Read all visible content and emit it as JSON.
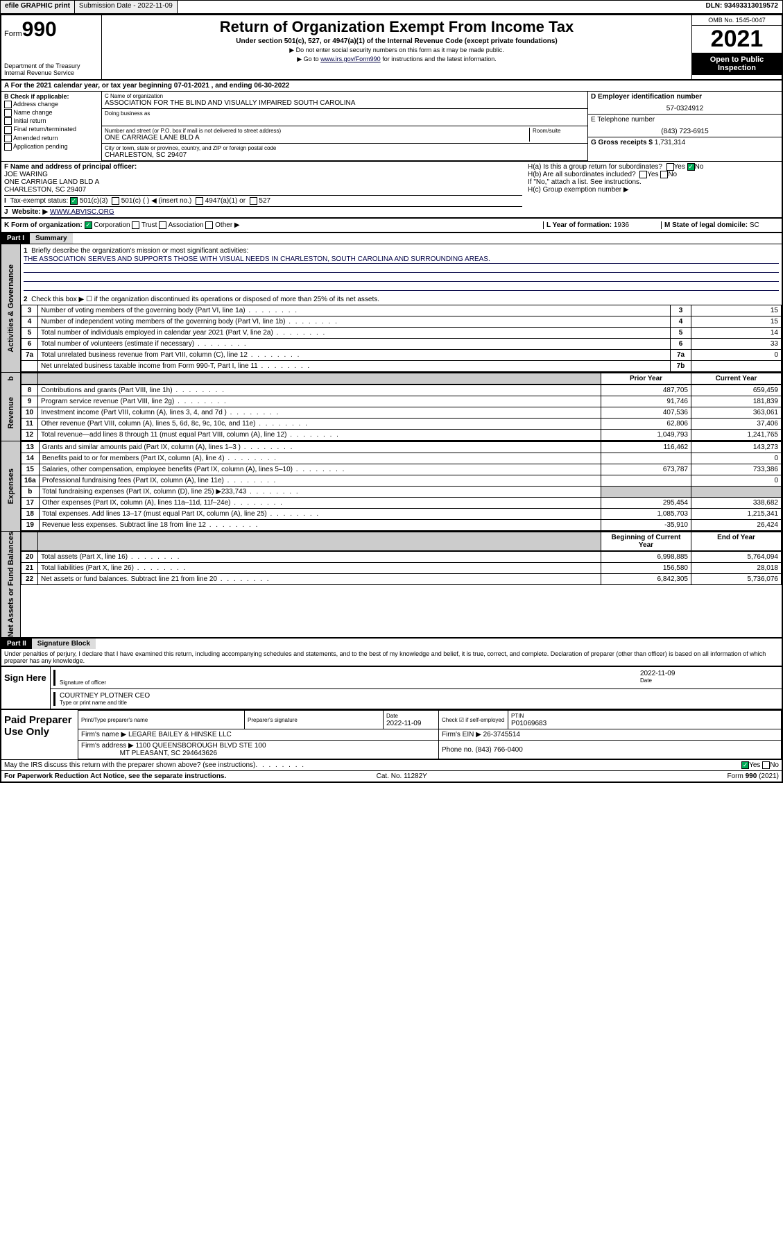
{
  "topbar": {
    "efile": "efile GRAPHIC print",
    "submission": "Submission Date - 2022-11-09",
    "dln": "DLN: 93493313019572"
  },
  "header": {
    "form_label": "Form",
    "form_num": "990",
    "dept": "Department of the Treasury",
    "irs": "Internal Revenue Service",
    "title": "Return of Organization Exempt From Income Tax",
    "sub1": "Under section 501(c), 527, or 4947(a)(1) of the Internal Revenue Code (except private foundations)",
    "sub2": "▶ Do not enter social security numbers on this form as it may be made public.",
    "sub3_pre": "▶ Go to ",
    "sub3_link": "www.irs.gov/Form990",
    "sub3_post": " for instructions and the latest information.",
    "omb": "OMB No. 1545-0047",
    "year": "2021",
    "inspect1": "Open to Public",
    "inspect2": "Inspection"
  },
  "rowA": "A For the 2021 calendar year, or tax year beginning 07-01-2021   , and ending 06-30-2022",
  "colB": {
    "title": "B Check if applicable:",
    "items": [
      "Address change",
      "Name change",
      "Initial return",
      "Final return/terminated",
      "Amended return",
      "Application pending"
    ]
  },
  "colC": {
    "name_lbl": "C Name of organization",
    "name": "ASSOCIATION FOR THE BLIND AND VISUALLY IMPAIRED SOUTH CAROLINA",
    "dba_lbl": "Doing business as",
    "addr_lbl": "Number and street (or P.O. box if mail is not delivered to street address)",
    "room_lbl": "Room/suite",
    "addr": "ONE CARRIAGE LANE BLD A",
    "city_lbl": "City or town, state or province, country, and ZIP or foreign postal code",
    "city": "CHARLESTON, SC  29407"
  },
  "colDE": {
    "ein_lbl": "D Employer identification number",
    "ein": "57-0324912",
    "tel_lbl": "E Telephone number",
    "tel": "(843) 723-6915",
    "gross_lbl": "G Gross receipts $",
    "gross": "1,731,314"
  },
  "secF": {
    "lbl": "F Name and address of principal officer:",
    "name": "JOE WARING",
    "addr": "ONE CARRIAGE LAND BLD A",
    "city": "CHARLESTON, SC  29407"
  },
  "secH": {
    "ha": "H(a)  Is this a group return for subordinates?",
    "hb": "H(b)  Are all subordinates included?",
    "hb_note": "If \"No,\" attach a list. See instructions.",
    "hc": "H(c)  Group exemption number ▶",
    "yes": "Yes",
    "no": "No"
  },
  "secI": {
    "lbl": "Tax-exempt status:",
    "opts": [
      "501(c)(3)",
      "501(c) (  ) ◀ (insert no.)",
      "4947(a)(1) or",
      "527"
    ]
  },
  "secJ": {
    "lbl": "Website: ▶",
    "val": "WWW.ABVISC.ORG"
  },
  "secK": {
    "lbl": "K Form of organization:",
    "opts": [
      "Corporation",
      "Trust",
      "Association",
      "Other ▶"
    ],
    "yof_lbl": "L Year of formation:",
    "yof": "1936",
    "dom_lbl": "M State of legal domicile:",
    "dom": "SC"
  },
  "part1": {
    "hdr": "Part I",
    "title": "Summary",
    "l1": "Briefly describe the organization's mission or most significant activities:",
    "mission": "THE ASSOCIATION SERVES AND SUPPORTS THOSE WITH VISUAL NEEDS IN CHARLESTON, SOUTH CAROLINA AND SURROUNDING AREAS.",
    "l2": "Check this box ▶ ☐  if the organization discontinued its operations or disposed of more than 25% of its net assets.",
    "rows_gov": [
      {
        "n": "3",
        "d": "Number of voting members of the governing body (Part VI, line 1a)",
        "b": "3",
        "v": "15"
      },
      {
        "n": "4",
        "d": "Number of independent voting members of the governing body (Part VI, line 1b)",
        "b": "4",
        "v": "15"
      },
      {
        "n": "5",
        "d": "Total number of individuals employed in calendar year 2021 (Part V, line 2a)",
        "b": "5",
        "v": "14"
      },
      {
        "n": "6",
        "d": "Total number of volunteers (estimate if necessary)",
        "b": "6",
        "v": "33"
      },
      {
        "n": "7a",
        "d": "Total unrelated business revenue from Part VIII, column (C), line 12",
        "b": "7a",
        "v": "0"
      },
      {
        "n": "",
        "d": "Net unrelated business taxable income from Form 990-T, Part I, line 11",
        "b": "7b",
        "v": ""
      }
    ],
    "col_prior": "Prior Year",
    "col_curr": "Current Year",
    "rows_rev": [
      {
        "n": "8",
        "d": "Contributions and grants (Part VIII, line 1h)",
        "p": "487,705",
        "c": "659,459"
      },
      {
        "n": "9",
        "d": "Program service revenue (Part VIII, line 2g)",
        "p": "91,746",
        "c": "181,839"
      },
      {
        "n": "10",
        "d": "Investment income (Part VIII, column (A), lines 3, 4, and 7d )",
        "p": "407,536",
        "c": "363,061"
      },
      {
        "n": "11",
        "d": "Other revenue (Part VIII, column (A), lines 5, 6d, 8c, 9c, 10c, and 11e)",
        "p": "62,806",
        "c": "37,406"
      },
      {
        "n": "12",
        "d": "Total revenue—add lines 8 through 11 (must equal Part VIII, column (A), line 12)",
        "p": "1,049,793",
        "c": "1,241,765"
      }
    ],
    "rows_exp": [
      {
        "n": "13",
        "d": "Grants and similar amounts paid (Part IX, column (A), lines 1–3 )",
        "p": "116,462",
        "c": "143,273"
      },
      {
        "n": "14",
        "d": "Benefits paid to or for members (Part IX, column (A), line 4)",
        "p": "",
        "c": "0"
      },
      {
        "n": "15",
        "d": "Salaries, other compensation, employee benefits (Part IX, column (A), lines 5–10)",
        "p": "673,787",
        "c": "733,386"
      },
      {
        "n": "16a",
        "d": "Professional fundraising fees (Part IX, column (A), line 11e)",
        "p": "",
        "c": "0"
      },
      {
        "n": "b",
        "d": "Total fundraising expenses (Part IX, column (D), line 25) ▶233,743",
        "p": "shade",
        "c": "shade"
      },
      {
        "n": "17",
        "d": "Other expenses (Part IX, column (A), lines 11a–11d, 11f–24e)",
        "p": "295,454",
        "c": "338,682"
      },
      {
        "n": "18",
        "d": "Total expenses. Add lines 13–17 (must equal Part IX, column (A), line 25)",
        "p": "1,085,703",
        "c": "1,215,341"
      },
      {
        "n": "19",
        "d": "Revenue less expenses. Subtract line 18 from line 12",
        "p": "-35,910",
        "c": "26,424"
      }
    ],
    "col_beg": "Beginning of Current Year",
    "col_end": "End of Year",
    "rows_net": [
      {
        "n": "20",
        "d": "Total assets (Part X, line 16)",
        "p": "6,998,885",
        "c": "5,764,094"
      },
      {
        "n": "21",
        "d": "Total liabilities (Part X, line 26)",
        "p": "156,580",
        "c": "28,018"
      },
      {
        "n": "22",
        "d": "Net assets or fund balances. Subtract line 21 from line 20",
        "p": "6,842,305",
        "c": "5,736,076"
      }
    ],
    "vtabs": [
      "Activities & Governance",
      "Revenue",
      "Expenses",
      "Net Assets or Fund Balances"
    ]
  },
  "part2": {
    "hdr": "Part II",
    "title": "Signature Block",
    "decl": "Under penalties of perjury, I declare that I have examined this return, including accompanying schedules and statements, and to the best of my knowledge and belief, it is true, correct, and complete. Declaration of preparer (other than officer) is based on all information of which preparer has any knowledge."
  },
  "sign": {
    "here": "Sign Here",
    "sig_lbl": "Signature of officer",
    "date_lbl": "Date",
    "date": "2022-11-09",
    "name": "COURTNEY PLOTNER  CEO",
    "name_lbl": "Type or print name and title"
  },
  "prep": {
    "title": "Paid Preparer Use Only",
    "h1": "Print/Type preparer's name",
    "h2": "Preparer's signature",
    "h3": "Date",
    "h4": "Check ☑ if self-employed",
    "h5": "PTIN",
    "date": "2022-11-09",
    "ptin": "P01069683",
    "firm_lbl": "Firm's name    ▶",
    "firm": "LEGARE BAILEY & HINSKE LLC",
    "ein_lbl": "Firm's EIN ▶",
    "ein": "26-3745514",
    "addr_lbl": "Firm's address ▶",
    "addr": "1100 QUEENSBOROUGH BLVD STE 100",
    "addr2": "MT PLEASANT, SC  294643626",
    "phone_lbl": "Phone no.",
    "phone": "(843) 766-0400"
  },
  "bottom": {
    "discuss": "May the IRS discuss this return with the preparer shown above? (see instructions)",
    "paperwork": "For Paperwork Reduction Act Notice, see the separate instructions.",
    "cat": "Cat. No. 11282Y",
    "form": "Form 990 (2021)"
  }
}
